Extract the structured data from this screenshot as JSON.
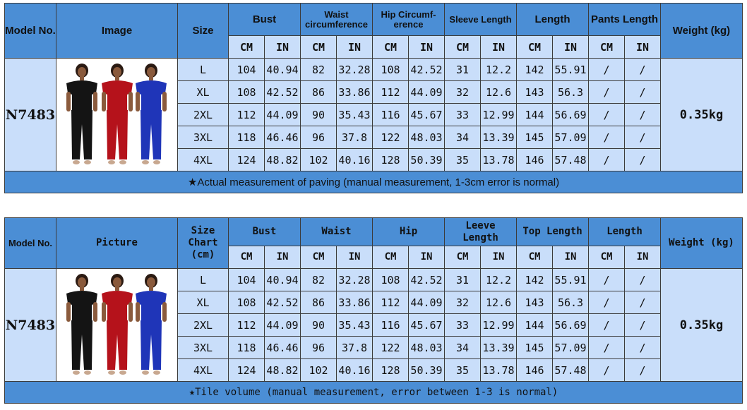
{
  "chart1": {
    "headers": {
      "model": "Model No.",
      "image": "Image",
      "size": "Size",
      "bust": "Bust",
      "waist": "Waist circumference",
      "hip": "Hip Circumf-erence",
      "sleeve": "Sleeve Length",
      "length": "Length",
      "pants": "Pants Length",
      "weight": "Weight (kg)",
      "cm": "CM",
      "in": "IN"
    },
    "model": "N7483",
    "weight": "0.35kg",
    "rows": [
      {
        "size": "L",
        "bust_cm": "104",
        "bust_in": "40.94",
        "waist_cm": "82",
        "waist_in": "32.28",
        "hip_cm": "108",
        "hip_in": "42.52",
        "sleeve_cm": "31",
        "sleeve_in": "12.2",
        "length_cm": "142",
        "length_in": "55.91",
        "pants_cm": "/",
        "pants_in": "/"
      },
      {
        "size": "XL",
        "bust_cm": "108",
        "bust_in": "42.52",
        "waist_cm": "86",
        "waist_in": "33.86",
        "hip_cm": "112",
        "hip_in": "44.09",
        "sleeve_cm": "32",
        "sleeve_in": "12.6",
        "length_cm": "143",
        "length_in": "56.3",
        "pants_cm": "/",
        "pants_in": "/"
      },
      {
        "size": "2XL",
        "bust_cm": "112",
        "bust_in": "44.09",
        "waist_cm": "90",
        "waist_in": "35.43",
        "hip_cm": "116",
        "hip_in": "45.67",
        "sleeve_cm": "33",
        "sleeve_in": "12.99",
        "length_cm": "144",
        "length_in": "56.69",
        "pants_cm": "/",
        "pants_in": "/"
      },
      {
        "size": "3XL",
        "bust_cm": "118",
        "bust_in": "46.46",
        "waist_cm": "96",
        "waist_in": "37.8",
        "hip_cm": "122",
        "hip_in": "48.03",
        "sleeve_cm": "34",
        "sleeve_in": "13.39",
        "length_cm": "145",
        "length_in": "57.09",
        "pants_cm": "/",
        "pants_in": "/"
      },
      {
        "size": "4XL",
        "bust_cm": "124",
        "bust_in": "48.82",
        "waist_cm": "102",
        "waist_in": "40.16",
        "hip_cm": "128",
        "hip_in": "50.39",
        "sleeve_cm": "35",
        "sleeve_in": "13.78",
        "length_cm": "146",
        "length_in": "57.48",
        "pants_cm": "/",
        "pants_in": "/"
      }
    ],
    "note": "★Actual measurement of paving (manual measurement, 1-3cm error is normal)"
  },
  "chart2": {
    "headers": {
      "model": "Model No.",
      "image": "Picture",
      "size": "Size Chart (cm)",
      "bust": "Bust",
      "waist": "Waist",
      "hip": "Hip",
      "sleeve": "Leeve Length",
      "length": "Top Length",
      "pants": "Length",
      "weight": "Weight (kg)",
      "cm": "CM",
      "in": "IN"
    },
    "model": "N7483",
    "weight": "0.35kg",
    "rows": [
      {
        "size": "L",
        "bust_cm": "104",
        "bust_in": "40.94",
        "waist_cm": "82",
        "waist_in": "32.28",
        "hip_cm": "108",
        "hip_in": "42.52",
        "sleeve_cm": "31",
        "sleeve_in": "12.2",
        "length_cm": "142",
        "length_in": "55.91",
        "pants_cm": "/",
        "pants_in": "/"
      },
      {
        "size": "XL",
        "bust_cm": "108",
        "bust_in": "42.52",
        "waist_cm": "86",
        "waist_in": "33.86",
        "hip_cm": "112",
        "hip_in": "44.09",
        "sleeve_cm": "32",
        "sleeve_in": "12.6",
        "length_cm": "143",
        "length_in": "56.3",
        "pants_cm": "/",
        "pants_in": "/"
      },
      {
        "size": "2XL",
        "bust_cm": "112",
        "bust_in": "44.09",
        "waist_cm": "90",
        "waist_in": "35.43",
        "hip_cm": "116",
        "hip_in": "45.67",
        "sleeve_cm": "33",
        "sleeve_in": "12.99",
        "length_cm": "144",
        "length_in": "56.69",
        "pants_cm": "/",
        "pants_in": "/"
      },
      {
        "size": "3XL",
        "bust_cm": "118",
        "bust_in": "46.46",
        "waist_cm": "96",
        "waist_in": "37.8",
        "hip_cm": "122",
        "hip_in": "48.03",
        "sleeve_cm": "34",
        "sleeve_in": "13.39",
        "length_cm": "145",
        "length_in": "57.09",
        "pants_cm": "/",
        "pants_in": "/"
      },
      {
        "size": "4XL",
        "bust_cm": "124",
        "bust_in": "48.82",
        "waist_cm": "102",
        "waist_in": "40.16",
        "hip_cm": "128",
        "hip_in": "50.39",
        "sleeve_cm": "35",
        "sleeve_in": "13.78",
        "length_cm": "146",
        "length_in": "57.48",
        "pants_cm": "/",
        "pants_in": "/"
      }
    ],
    "note": "★Tile volume (manual measurement, error between 1-3 is normal)"
  },
  "colors": {
    "header_blue": "#4b8ed5",
    "cell_light": "#c9defa",
    "garment_black": "#141414",
    "garment_red": "#b5121b",
    "garment_blue": "#1f35b8"
  },
  "icons": {
    "product_image": "product-photo-three-models-icon"
  }
}
